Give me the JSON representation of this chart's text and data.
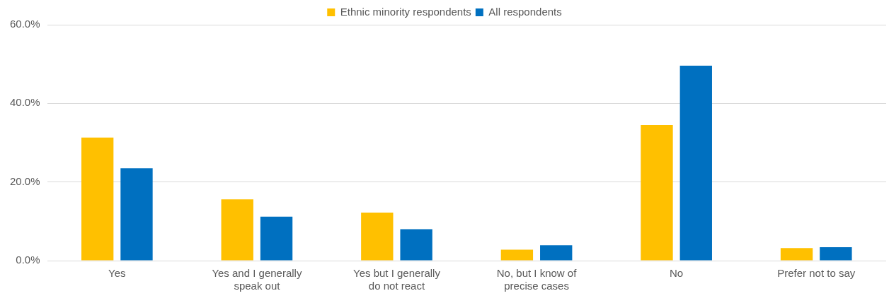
{
  "chart_data": {
    "type": "bar",
    "categories": [
      "Yes",
      "Yes and I generally speak out",
      "Yes but I generally do not react",
      "No, but I know of precise cases",
      "No",
      "Prefer not to say"
    ],
    "series": [
      {
        "name": "Ethnic minority respondents",
        "color": "#ffc000",
        "values": [
          31.3,
          15.6,
          12.2,
          2.8,
          34.5,
          3.2
        ]
      },
      {
        "name": "All respondents",
        "color": "#0070c0",
        "values": [
          23.5,
          11.2,
          8.0,
          3.9,
          49.6,
          3.4
        ]
      }
    ],
    "ylim": [
      0,
      60
    ],
    "yticks": [
      {
        "value": 0,
        "label": "0.0%"
      },
      {
        "value": 20,
        "label": "20.0%"
      },
      {
        "value": 40,
        "label": "40.0%"
      },
      {
        "value": 60,
        "label": "60.0%"
      }
    ],
    "grid": "y",
    "legend": "top"
  }
}
